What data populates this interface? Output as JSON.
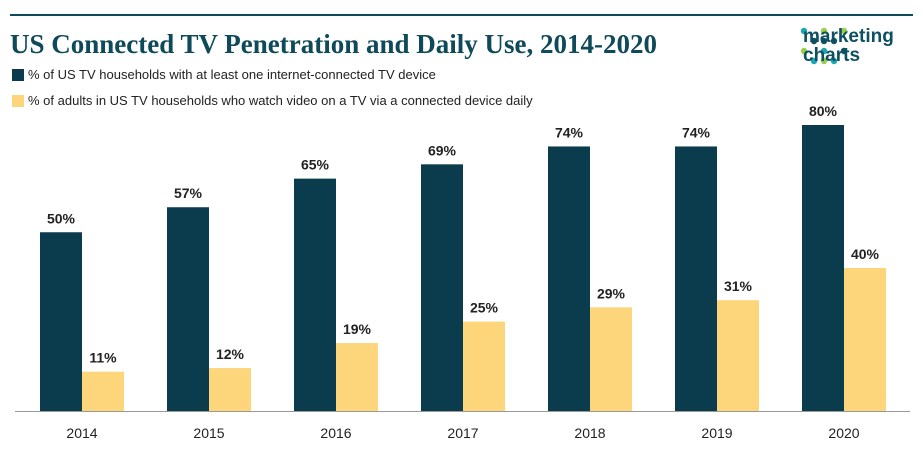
{
  "header": {
    "title": "US Connected TV Penetration and Daily Use, 2014-2020",
    "logo_line1": "marketing",
    "logo_line2": "charts"
  },
  "colors": {
    "series1": "#0b3c4d",
    "series2": "#fdd57a",
    "title": "#0e4a5a",
    "rule": "#0e4a5a",
    "axis": "#999999",
    "logo_dots": [
      "#1aa7b3",
      "#9acd4c",
      "#0e5060"
    ]
  },
  "chart_data": {
    "type": "bar",
    "categories": [
      "2014",
      "2015",
      "2016",
      "2017",
      "2018",
      "2019",
      "2020"
    ],
    "series": [
      {
        "name": "% of US TV households with at least one internet-connected TV device",
        "values": [
          50,
          57,
          65,
          69,
          74,
          74,
          80
        ],
        "labels": [
          "50%",
          "57%",
          "65%",
          "69%",
          "74%",
          "74%",
          "80%"
        ]
      },
      {
        "name": "% of adults in US TV households who watch video on a TV via a connected device daily",
        "values": [
          11,
          12,
          19,
          25,
          29,
          31,
          40
        ],
        "labels": [
          "11%",
          "12%",
          "19%",
          "25%",
          "29%",
          "31%",
          "40%"
        ]
      }
    ],
    "ylim": [
      0,
      80
    ],
    "grid": false,
    "legend_position": "top-left"
  }
}
